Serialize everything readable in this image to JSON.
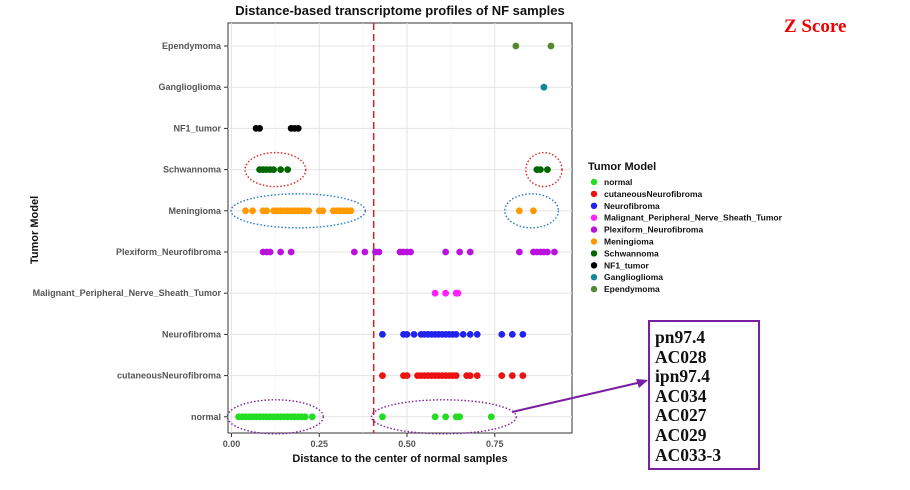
{
  "chart_data": {
    "type": "scatter",
    "title": "Distance-based transcriptome profiles of NF samples",
    "xlabel": "Distance to the center of normal samples",
    "ylabel": "Tumor Model",
    "xlim": [
      -0.01,
      0.97
    ],
    "x_ticks": [
      "0.00",
      "0.25",
      "0.50",
      "0.75"
    ],
    "x_tick_values": [
      0,
      0.25,
      0.5,
      0.75
    ],
    "grid": true,
    "reference_line": {
      "x": 0.405,
      "style": "dashed",
      "color": "#cc2222"
    },
    "categories": [
      "normal",
      "cutaneousNeurofibroma",
      "Neurofibroma",
      "Malignant_Peripheral_Nerve_Sheath_Tumor",
      "Plexiform_Neurofibroma",
      "Meningioma",
      "Schwannoma",
      "NF1_tumor",
      "Ganglioglioma",
      "Ependymoma"
    ],
    "legend": {
      "title": "Tumor Model",
      "position": "right",
      "items": [
        {
          "label": "normal",
          "color": "#22dd22"
        },
        {
          "label": "cutaneousNeurofibroma",
          "color": "#ee1111"
        },
        {
          "label": "Neurofibroma",
          "color": "#2222ee"
        },
        {
          "label": "Malignant_Peripheral_Nerve_Sheath_Tumor",
          "color": "#ff22ff"
        },
        {
          "label": "Plexiform_Neurofibroma",
          "color": "#bb11dd"
        },
        {
          "label": "Meningioma",
          "color": "#ff9900"
        },
        {
          "label": "Schwannoma",
          "color": "#006600"
        },
        {
          "label": "NF1_tumor",
          "color": "#000000"
        },
        {
          "label": "Ganglioglioma",
          "color": "#118899"
        },
        {
          "label": "Ependymoma",
          "color": "#558833"
        }
      ]
    },
    "series": [
      {
        "name": "normal",
        "color": "#22dd22",
        "x": [
          0.02,
          0.03,
          0.04,
          0.05,
          0.06,
          0.07,
          0.08,
          0.09,
          0.1,
          0.11,
          0.12,
          0.13,
          0.14,
          0.15,
          0.16,
          0.17,
          0.18,
          0.19,
          0.2,
          0.21,
          0.23,
          0.43,
          0.58,
          0.61,
          0.64,
          0.65,
          0.74
        ]
      },
      {
        "name": "cutaneousNeurofibroma",
        "color": "#ee1111",
        "x": [
          0.43,
          0.49,
          0.5,
          0.53,
          0.54,
          0.55,
          0.56,
          0.57,
          0.58,
          0.59,
          0.6,
          0.61,
          0.62,
          0.63,
          0.64,
          0.67,
          0.68,
          0.7,
          0.77,
          0.8,
          0.83
        ]
      },
      {
        "name": "Neurofibroma",
        "color": "#2222ee",
        "x": [
          0.43,
          0.49,
          0.5,
          0.52,
          0.54,
          0.55,
          0.56,
          0.57,
          0.58,
          0.59,
          0.6,
          0.61,
          0.62,
          0.63,
          0.64,
          0.66,
          0.68,
          0.7,
          0.77,
          0.8,
          0.83
        ]
      },
      {
        "name": "Malignant_Peripheral_Nerve_Sheath_Tumor",
        "color": "#ff22ff",
        "x": [
          0.58,
          0.61,
          0.64,
          0.645
        ]
      },
      {
        "name": "Plexiform_Neurofibroma",
        "color": "#bb11dd",
        "x": [
          0.09,
          0.1,
          0.11,
          0.14,
          0.17,
          0.35,
          0.38,
          0.41,
          0.42,
          0.48,
          0.49,
          0.5,
          0.51,
          0.61,
          0.65,
          0.68,
          0.82,
          0.86,
          0.87,
          0.88,
          0.89,
          0.9,
          0.92
        ]
      },
      {
        "name": "Meningioma",
        "color": "#ff9900",
        "x": [
          0.04,
          0.06,
          0.09,
          0.1,
          0.12,
          0.13,
          0.14,
          0.15,
          0.16,
          0.17,
          0.18,
          0.19,
          0.2,
          0.21,
          0.22,
          0.25,
          0.26,
          0.29,
          0.3,
          0.31,
          0.32,
          0.33,
          0.34,
          0.82,
          0.86
        ]
      },
      {
        "name": "Schwannoma",
        "color": "#006600",
        "x": [
          0.08,
          0.09,
          0.1,
          0.11,
          0.12,
          0.14,
          0.16,
          0.87,
          0.88,
          0.9
        ]
      },
      {
        "name": "NF1_tumor",
        "color": "#000000",
        "x": [
          0.07,
          0.08,
          0.17,
          0.18,
          0.19
        ]
      },
      {
        "name": "Ganglioglioma",
        "color": "#118899",
        "x": [
          0.89
        ]
      },
      {
        "name": "Ependymoma",
        "color": "#558833",
        "x": [
          0.81,
          0.91
        ]
      }
    ],
    "annotations": [
      {
        "type": "dotted-ellipse",
        "color": "#dd2222",
        "row": "Schwannoma",
        "x_range": [
          0.05,
          0.2
        ]
      },
      {
        "type": "dotted-ellipse",
        "color": "#dd2222",
        "row": "Schwannoma",
        "x_range": [
          0.85,
          0.93
        ]
      },
      {
        "type": "dotted-ellipse",
        "color": "#2277cc",
        "row": "Meningioma",
        "x_range": [
          0.01,
          0.37
        ]
      },
      {
        "type": "dotted-ellipse",
        "color": "#2277cc",
        "row": "Meningioma",
        "x_range": [
          0.79,
          0.92
        ]
      },
      {
        "type": "dotted-ellipse",
        "color": "#7a1fa2",
        "row": "normal",
        "x_range": [
          0.0,
          0.25
        ]
      },
      {
        "type": "dotted-ellipse",
        "color": "#7a1fa2",
        "row": "normal",
        "x_range": [
          0.41,
          0.8
        ]
      }
    ]
  },
  "zscore_label": "Z Score",
  "sample_box": {
    "border_color": "#7a1fa2",
    "samples": [
      "pn97.4",
      "AC028",
      "ipn97.4",
      "AC034",
      "AC027",
      "AC029",
      "AC033-3"
    ]
  }
}
